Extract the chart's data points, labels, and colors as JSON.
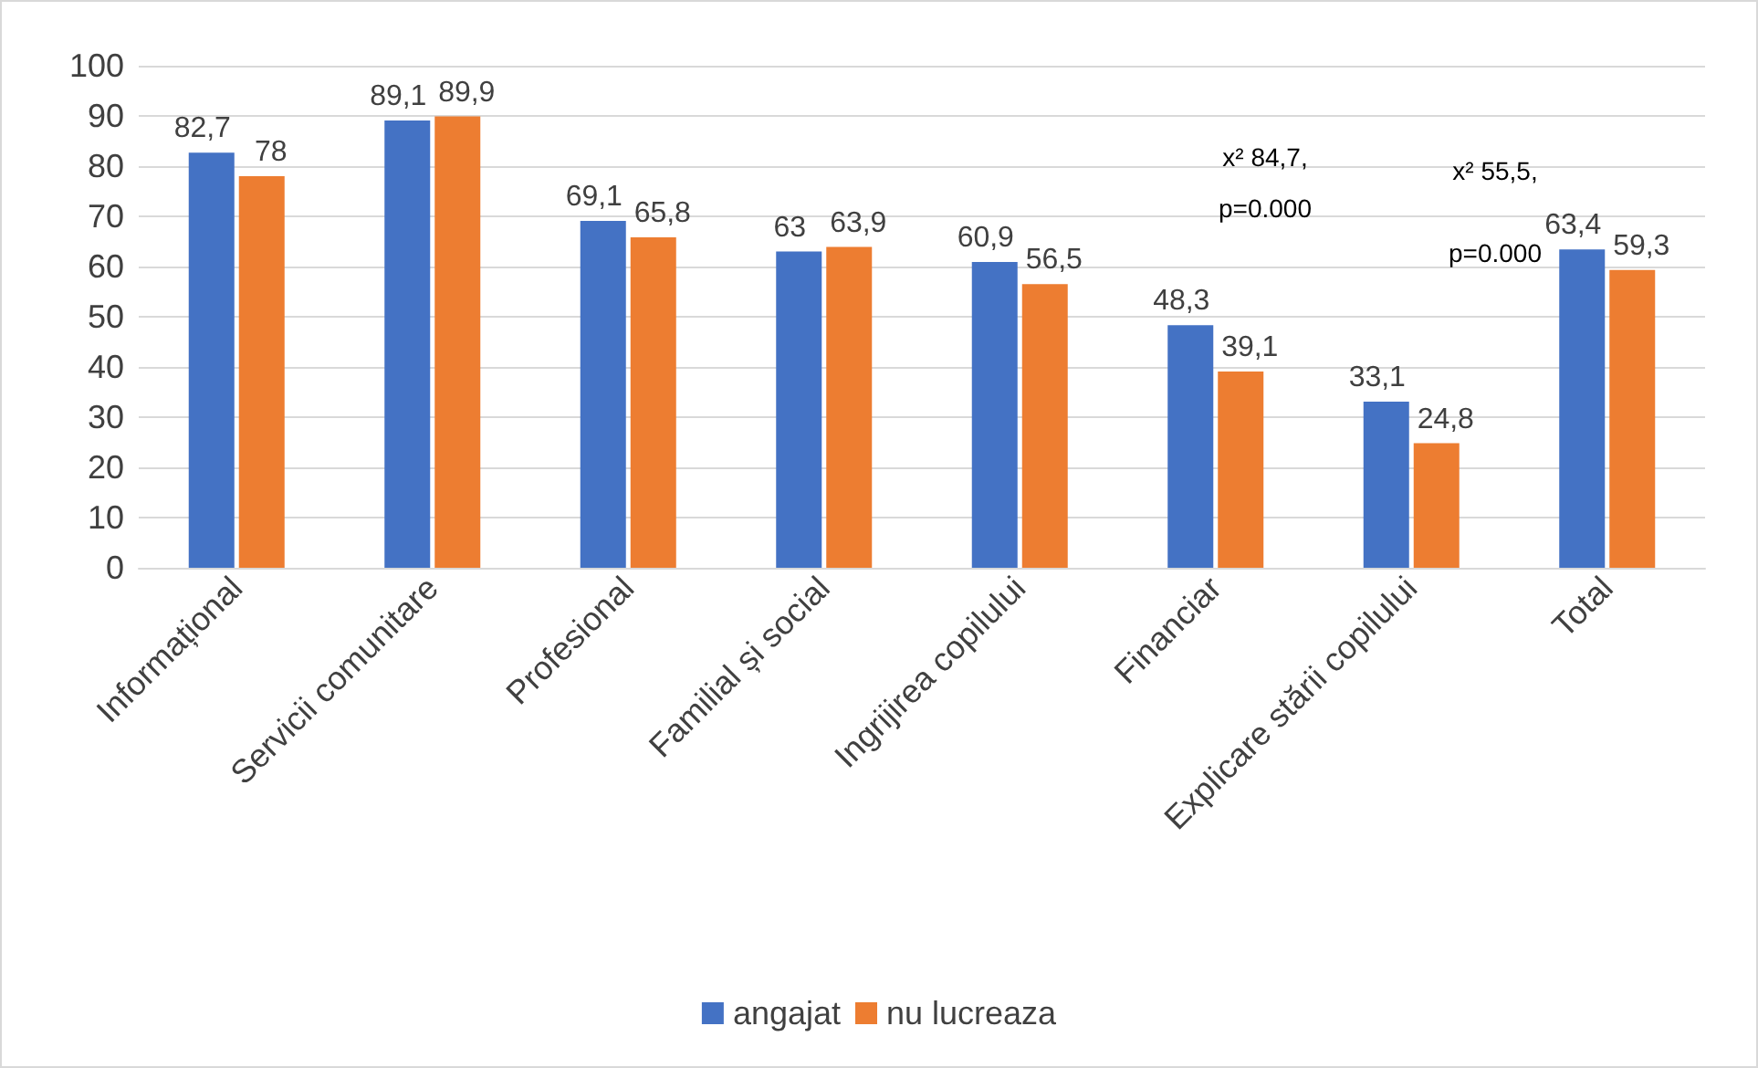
{
  "chart_data": {
    "type": "bar",
    "categories": [
      "Informațional",
      "Servicii comunitare",
      "Profesional",
      "Familial și social",
      "Ingrijirea copilului",
      "Financiar",
      "Explicare stării copilului",
      "Total"
    ],
    "series": [
      {
        "name": "angajat",
        "color": "#4472c4",
        "values": [
          82.7,
          89.1,
          69.1,
          63,
          60.9,
          48.3,
          33.1,
          63.4
        ],
        "value_labels": [
          "82,7",
          "89,1",
          "69,1",
          "63",
          "60,9",
          "48,3",
          "33,1",
          "63,4"
        ]
      },
      {
        "name": "nu lucreaza",
        "color": "#ed7d31",
        "values": [
          78,
          89.9,
          65.8,
          63.9,
          56.5,
          39.1,
          24.8,
          59.3
        ],
        "value_labels": [
          "78",
          "89,9",
          "65,8",
          "63,9",
          "56,5",
          "39,1",
          "24,8",
          "59,3"
        ]
      }
    ],
    "ylim": [
      0,
      100
    ],
    "yticks": [
      0,
      10,
      20,
      30,
      40,
      50,
      60,
      70,
      80,
      90,
      100
    ],
    "grid": "y",
    "legend": "bottom",
    "annotations": [
      "x² 84,7,\np=0.000",
      "x² 55,5,\np=0.000"
    ]
  }
}
